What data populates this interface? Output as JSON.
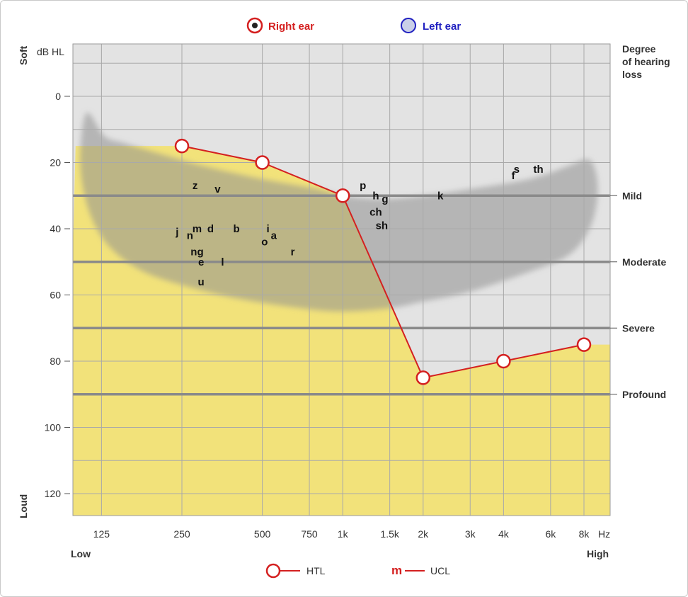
{
  "legend_top": {
    "right_label": "Right ear",
    "left_label": "Left ear",
    "right_color": "#d42020",
    "left_color": "#2020c0"
  },
  "legend_bottom": {
    "htl_label": "HTL",
    "ucl_label": "UCL",
    "ucl_symbol": "m"
  },
  "axis": {
    "y_top_label": "Soft",
    "y_bottom_label": "Loud",
    "y_unit": "dB HL",
    "x_low_label": "Low",
    "x_high_label": "High",
    "x_unit": "Hz",
    "degree_title": [
      "Degree",
      "of hearing",
      "loss"
    ]
  },
  "colors": {
    "yellow": "#f2e27a",
    "grey_bg": "#e3e3e3",
    "banana": "#a0a0a0",
    "line": "#d42020",
    "threshold_line": "#8a8a8a"
  },
  "chart_data": {
    "type": "line",
    "title": "",
    "xlabel": "Hz",
    "ylabel": "dB HL",
    "x_scale": "log",
    "ylim": [
      -15,
      127
    ],
    "y_inverted": true,
    "x_ticks": [
      {
        "label": "125",
        "value": 125
      },
      {
        "label": "250",
        "value": 250
      },
      {
        "label": "500",
        "value": 500
      },
      {
        "label": "750",
        "value": 750
      },
      {
        "label": "1k",
        "value": 1000
      },
      {
        "label": "1.5k",
        "value": 1500
      },
      {
        "label": "2k",
        "value": 2000
      },
      {
        "label": "3k",
        "value": 3000
      },
      {
        "label": "4k",
        "value": 4000
      },
      {
        "label": "6k",
        "value": 6000
      },
      {
        "label": "8k",
        "value": 8000
      }
    ],
    "y_ticks": [
      {
        "label": "0",
        "value": 0
      },
      {
        "label": "20",
        "value": 20
      },
      {
        "label": "40",
        "value": 40
      },
      {
        "label": "60",
        "value": 60
      },
      {
        "label": "80",
        "value": 80
      },
      {
        "label": "100",
        "value": 100
      },
      {
        "label": "120",
        "value": 120
      }
    ],
    "series": [
      {
        "name": "Right ear",
        "x": [
          250,
          500,
          1000,
          2000,
          4000,
          8000
        ],
        "y": [
          15,
          20,
          30,
          85,
          80,
          75
        ]
      }
    ],
    "degree_levels": [
      {
        "label": "Mild",
        "value": 30
      },
      {
        "label": "Moderate",
        "value": 50
      },
      {
        "label": "Severe",
        "value": 70
      },
      {
        "label": "Profound",
        "value": 90
      }
    ],
    "phonemes": [
      {
        "text": "z",
        "x": 280,
        "y": 27
      },
      {
        "text": "v",
        "x": 340,
        "y": 28
      },
      {
        "text": "j",
        "x": 240,
        "y": 41
      },
      {
        "text": "n",
        "x": 268,
        "y": 42
      },
      {
        "text": "m",
        "x": 285,
        "y": 40
      },
      {
        "text": "d",
        "x": 320,
        "y": 40
      },
      {
        "text": "b",
        "x": 400,
        "y": 40
      },
      {
        "text": "i",
        "x": 525,
        "y": 40
      },
      {
        "text": "a",
        "x": 552,
        "y": 42
      },
      {
        "text": "o",
        "x": 510,
        "y": 44
      },
      {
        "text": "r",
        "x": 650,
        "y": 47
      },
      {
        "text": "ng",
        "x": 285,
        "y": 47
      },
      {
        "text": "e",
        "x": 295,
        "y": 50
      },
      {
        "text": "l",
        "x": 355,
        "y": 50
      },
      {
        "text": "u",
        "x": 295,
        "y": 56
      },
      {
        "text": "p",
        "x": 1190,
        "y": 27
      },
      {
        "text": "h",
        "x": 1330,
        "y": 30
      },
      {
        "text": "g",
        "x": 1440,
        "y": 31
      },
      {
        "text": "ch",
        "x": 1330,
        "y": 35
      },
      {
        "text": "sh",
        "x": 1400,
        "y": 39
      },
      {
        "text": "k",
        "x": 2320,
        "y": 30
      },
      {
        "text": "f",
        "x": 4350,
        "y": 24
      },
      {
        "text": "s",
        "x": 4480,
        "y": 22
      },
      {
        "text": "th",
        "x": 5400,
        "y": 22
      }
    ],
    "yellow_region": [
      [
        100,
        15
      ],
      [
        250,
        15
      ],
      [
        500,
        20
      ],
      [
        1000,
        30
      ],
      [
        2000,
        85
      ],
      [
        4000,
        80
      ],
      [
        8000,
        75
      ],
      [
        10000,
        75
      ]
    ],
    "speech_banana": [
      [
        110,
        5
      ],
      [
        128,
        12
      ],
      [
        150,
        14
      ],
      [
        200,
        17
      ],
      [
        300,
        21
      ],
      [
        500,
        25
      ],
      [
        800,
        28
      ],
      [
        1000,
        30
      ],
      [
        1400,
        31
      ],
      [
        2000,
        30
      ],
      [
        3000,
        28
      ],
      [
        5000,
        25
      ],
      [
        7000,
        21
      ],
      [
        8200,
        19
      ],
      [
        8800,
        22
      ],
      [
        9000,
        30
      ],
      [
        8400,
        40
      ],
      [
        7000,
        48
      ],
      [
        5000,
        53
      ],
      [
        3000,
        59
      ],
      [
        2000,
        62
      ],
      [
        1500,
        64
      ],
      [
        1000,
        65
      ],
      [
        700,
        64
      ],
      [
        400,
        61
      ],
      [
        250,
        57
      ],
      [
        180,
        53
      ],
      [
        140,
        47
      ],
      [
        120,
        40
      ],
      [
        108,
        30
      ],
      [
        104,
        18
      ]
    ]
  }
}
